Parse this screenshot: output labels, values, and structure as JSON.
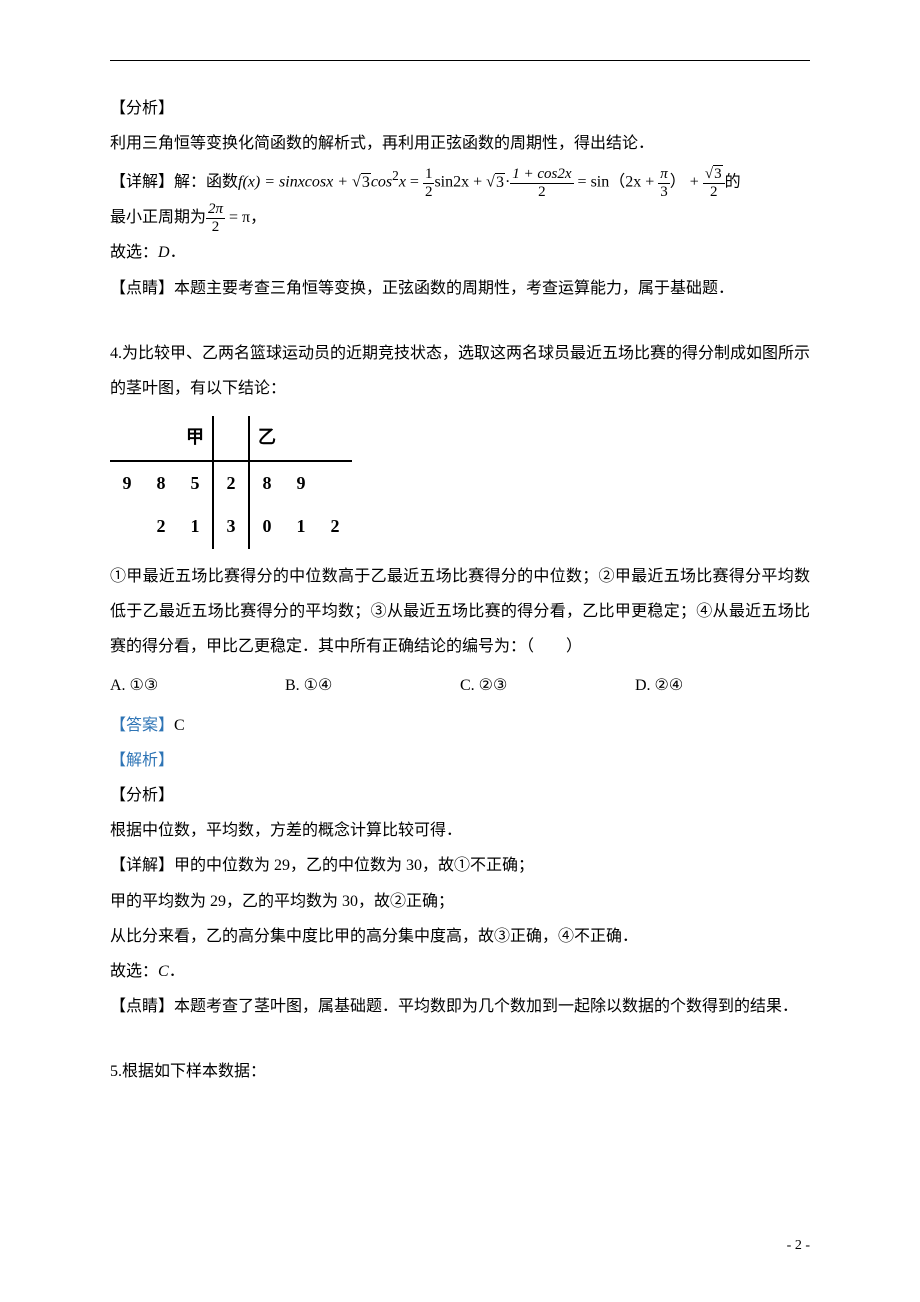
{
  "section_analysis_label": "【分析】",
  "section_detail_label": "【详解】",
  "section_insight_label": "【点睛】",
  "answer_label": "【答案】",
  "jiexi_label": "【解析】",
  "q3": {
    "analysis": "利用三角恒等变换化简函数的解析式，再利用正弦函数的周期性，得出结论．",
    "detail_prefix": "解：函数",
    "formula_lhs": "f(x) = sinxcosx + ",
    "formula_sqrt3": "3",
    "formula_cos2x": "cos",
    "formula_sup2": "2",
    "formula_x": "x",
    "eq": " = ",
    "half_num": "1",
    "half_den": "2",
    "sin2x": "sin2x",
    "plus": " + ",
    "dot": "·",
    "one_plus_cos2x_num": "1 + cos2x",
    "one_plus_cos2x_den": "2",
    "sin_open": " = sin（2x + ",
    "pi_num": "π",
    "pi_den": "3",
    "sin_close": "） + ",
    "sqrt3_over_2_num": "3",
    "sqrt3_over_2_den": "2",
    "tail_de": "的",
    "period_text_pre": "最小正周期为",
    "two_pi_num": "2π",
    "two_pi_den": "2",
    "eq_pi": " = π，",
    "therefore": "故选：",
    "answer_letter_italic": "D",
    "period_after": "．",
    "insight": "本题主要考查三角恒等变换，正弦函数的周期性，考查运算能力，属于基础题．"
  },
  "q4": {
    "number": "4.",
    "stem1": "为比较甲、乙两名篮球运动员的近期竞技状态，选取这两名球员最近五场比赛的得分制成如图所示的茎叶图，有以下结论：",
    "stemleaf": {
      "header_left": "甲",
      "header_right": "乙",
      "rows": [
        {
          "left": [
            "9",
            "8",
            "5"
          ],
          "stem": "2",
          "right": [
            "8",
            "9",
            ""
          ]
        },
        {
          "left": [
            "",
            "2",
            "1"
          ],
          "stem": "3",
          "right": [
            "0",
            "1",
            "2"
          ]
        }
      ]
    },
    "stem2": "①甲最近五场比赛得分的中位数高于乙最近五场比赛得分的中位数；②甲最近五场比赛得分平均数低于乙最近五场比赛得分的平均数；③从最近五场比赛的得分看，乙比甲更稳定；④从最近五场比赛的得分看，甲比乙更稳定．其中所有正确结论的编号为：（　　）",
    "choices": {
      "A": "A. ①③",
      "B": "B. ①④",
      "C": "C. ②③",
      "D": "D. ②④"
    },
    "answer": "C",
    "analysis": "根据中位数，平均数，方差的概念计算比较可得．",
    "detail1": "甲的中位数为 29，乙的中位数为 30，故①不正确；",
    "detail2": "甲的平均数为 29，乙的平均数为 30，故②正确；",
    "detail3": "从比分来看，乙的高分集中度比甲的高分集中度高，故③正确，④不正确．",
    "therefore": "故选：",
    "answer_letter_italic": "C",
    "period_after": "．",
    "insight": "本题考查了茎叶图，属基础题．平均数即为几个数加到一起除以数据的个数得到的结果．"
  },
  "q5": {
    "number": "5.",
    "stem": "根据如下样本数据："
  },
  "page_number": "- 2 -"
}
